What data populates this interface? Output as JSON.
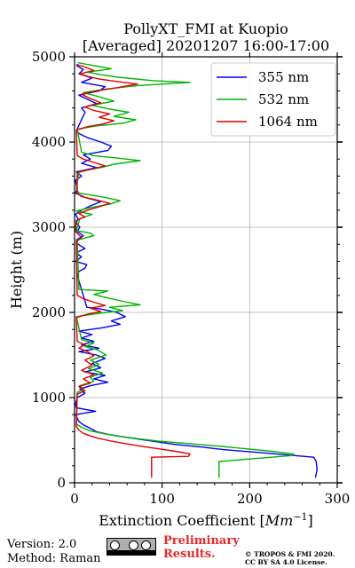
{
  "chart_data": {
    "type": "line",
    "title_line1": "PollyXT_FMI at Kuopio",
    "title_line2": "[Averaged] 20201207 16:00-17:00",
    "xlabel": "Extinction Coefficient [",
    "xlabel_unit_base": "Mm",
    "xlabel_unit_exp": "−1",
    "xlabel_close": "]",
    "ylabel": "Height (m)",
    "xlim": [
      0,
      300
    ],
    "ylim": [
      0,
      5000
    ],
    "xticks": [
      "0",
      "100",
      "200",
      "300"
    ],
    "yticks": [
      "0",
      "1000",
      "2000",
      "3000",
      "4000",
      "5000"
    ],
    "grid": true,
    "legend_position": "top-right",
    "series": [
      {
        "name": "355 nm",
        "color": "#0000ee",
        "points": [
          [
            275,
            60
          ],
          [
            277,
            150
          ],
          [
            276,
            250
          ],
          [
            273,
            300
          ],
          [
            240,
            330
          ],
          [
            205,
            360
          ],
          [
            170,
            390
          ],
          [
            145,
            420
          ],
          [
            115,
            450
          ],
          [
            95,
            480
          ],
          [
            75,
            510
          ],
          [
            55,
            540
          ],
          [
            38,
            570
          ],
          [
            25,
            600
          ],
          [
            18,
            640
          ],
          [
            10,
            680
          ],
          [
            5,
            720
          ],
          [
            3,
            760
          ],
          [
            1,
            800
          ],
          [
            24,
            840
          ],
          [
            2,
            880
          ],
          [
            1,
            920
          ],
          [
            3,
            1000
          ],
          [
            12,
            1050
          ],
          [
            6,
            1100
          ],
          [
            18,
            1140
          ],
          [
            38,
            1180
          ],
          [
            22,
            1220
          ],
          [
            35,
            1260
          ],
          [
            12,
            1300
          ],
          [
            30,
            1350
          ],
          [
            20,
            1400
          ],
          [
            35,
            1460
          ],
          [
            25,
            1500
          ],
          [
            5,
            1540
          ],
          [
            28,
            1580
          ],
          [
            8,
            1620
          ],
          [
            22,
            1660
          ],
          [
            8,
            1700
          ],
          [
            20,
            1740
          ],
          [
            5,
            1780
          ],
          [
            32,
            1820
          ],
          [
            52,
            1860
          ],
          [
            42,
            1900
          ],
          [
            58,
            1950
          ],
          [
            48,
            2000
          ],
          [
            30,
            2040
          ],
          [
            14,
            2060
          ],
          [
            3,
            2440
          ],
          [
            5,
            2480
          ],
          [
            12,
            2520
          ],
          [
            14,
            2560
          ],
          [
            1,
            2600
          ],
          [
            8,
            2650
          ],
          [
            2,
            2700
          ],
          [
            12,
            2750
          ],
          [
            4,
            2800
          ],
          [
            2,
            2850
          ],
          [
            10,
            2900
          ],
          [
            3,
            2950
          ],
          [
            6,
            3000
          ],
          [
            2,
            3050
          ],
          [
            4,
            3100
          ],
          [
            1,
            3150
          ],
          [
            8,
            3200
          ],
          [
            18,
            3250
          ],
          [
            30,
            3300
          ],
          [
            12,
            3350
          ],
          [
            1,
            3400
          ],
          [
            3,
            3450
          ],
          [
            1,
            3550
          ],
          [
            8,
            3600
          ],
          [
            2,
            3650
          ],
          [
            25,
            3700
          ],
          [
            8,
            3750
          ],
          [
            18,
            3800
          ],
          [
            10,
            3850
          ],
          [
            38,
            3900
          ],
          [
            42,
            3950
          ],
          [
            30,
            4000
          ],
          [
            15,
            4050
          ],
          [
            5,
            4100
          ],
          [
            2,
            4130
          ],
          [
            12,
            4350
          ],
          [
            8,
            4400
          ],
          [
            25,
            4450
          ],
          [
            15,
            4500
          ],
          [
            5,
            4550
          ],
          [
            28,
            4600
          ],
          [
            35,
            4650
          ],
          [
            8,
            4700
          ],
          [
            20,
            4750
          ],
          [
            5,
            4800
          ],
          [
            10,
            4850
          ],
          [
            2,
            4900
          ]
        ]
      },
      {
        "name": "532 nm",
        "color": "#00b400",
        "points": [
          [
            165,
            60
          ],
          [
            165,
            250
          ],
          [
            248,
            320
          ],
          [
            250,
            340
          ],
          [
            225,
            370
          ],
          [
            195,
            400
          ],
          [
            165,
            430
          ],
          [
            130,
            460
          ],
          [
            95,
            490
          ],
          [
            70,
            520
          ],
          [
            48,
            550
          ],
          [
            32,
            580
          ],
          [
            18,
            610
          ],
          [
            8,
            650
          ],
          [
            2,
            690
          ],
          [
            3,
            1060
          ],
          [
            10,
            1100
          ],
          [
            6,
            1140
          ],
          [
            22,
            1190
          ],
          [
            18,
            1240
          ],
          [
            32,
            1290
          ],
          [
            16,
            1340
          ],
          [
            28,
            1390
          ],
          [
            18,
            1440
          ],
          [
            36,
            1500
          ],
          [
            26,
            1560
          ],
          [
            12,
            1600
          ],
          [
            22,
            1640
          ],
          [
            8,
            1680
          ],
          [
            2,
            1950
          ],
          [
            28,
            1990
          ],
          [
            55,
            2020
          ],
          [
            40,
            2060
          ],
          [
            75,
            2090
          ],
          [
            55,
            2130
          ],
          [
            38,
            2170
          ],
          [
            22,
            2210
          ],
          [
            38,
            2250
          ],
          [
            5,
            2270
          ],
          [
            3,
            2850
          ],
          [
            22,
            2900
          ],
          [
            18,
            2930
          ],
          [
            2,
            2960
          ],
          [
            6,
            3100
          ],
          [
            20,
            3150
          ],
          [
            2,
            3190
          ],
          [
            18,
            3230
          ],
          [
            40,
            3270
          ],
          [
            52,
            3310
          ],
          [
            35,
            3350
          ],
          [
            5,
            3400
          ],
          [
            2,
            3450
          ],
          [
            5,
            3650
          ],
          [
            30,
            3700
          ],
          [
            45,
            3740
          ],
          [
            75,
            3780
          ],
          [
            50,
            3810
          ],
          [
            22,
            3840
          ],
          [
            8,
            3880
          ],
          [
            3,
            4150
          ],
          [
            25,
            4190
          ],
          [
            55,
            4220
          ],
          [
            70,
            4260
          ],
          [
            45,
            4300
          ],
          [
            62,
            4350
          ],
          [
            38,
            4390
          ],
          [
            20,
            4430
          ],
          [
            45,
            4480
          ],
          [
            28,
            4530
          ],
          [
            10,
            4580
          ],
          [
            35,
            4620
          ],
          [
            70,
            4660
          ],
          [
            132,
            4700
          ],
          [
            90,
            4720
          ],
          [
            50,
            4760
          ],
          [
            30,
            4790
          ],
          [
            15,
            4820
          ],
          [
            42,
            4860
          ],
          [
            20,
            4900
          ],
          [
            4,
            4930
          ]
        ]
      },
      {
        "name": "1064 nm",
        "color": "#dd0000",
        "points": [
          [
            88,
            60
          ],
          [
            88,
            300
          ],
          [
            130,
            310
          ],
          [
            132,
            340
          ],
          [
            115,
            370
          ],
          [
            95,
            400
          ],
          [
            75,
            430
          ],
          [
            58,
            460
          ],
          [
            42,
            490
          ],
          [
            28,
            520
          ],
          [
            18,
            550
          ],
          [
            10,
            580
          ],
          [
            5,
            620
          ],
          [
            2,
            660
          ],
          [
            3,
            1040
          ],
          [
            12,
            1080
          ],
          [
            5,
            1130
          ],
          [
            18,
            1170
          ],
          [
            10,
            1220
          ],
          [
            22,
            1270
          ],
          [
            8,
            1320
          ],
          [
            20,
            1380
          ],
          [
            12,
            1440
          ],
          [
            22,
            1490
          ],
          [
            15,
            1540
          ],
          [
            5,
            1580
          ],
          [
            12,
            1620
          ],
          [
            3,
            1660
          ],
          [
            2,
            1940
          ],
          [
            15,
            1980
          ],
          [
            30,
            2010
          ],
          [
            18,
            2050
          ],
          [
            35,
            2080
          ],
          [
            22,
            2120
          ],
          [
            10,
            2160
          ],
          [
            3,
            2200
          ],
          [
            2,
            2830
          ],
          [
            8,
            2880
          ],
          [
            4,
            2920
          ],
          [
            1,
            2950
          ],
          [
            2,
            3080
          ],
          [
            12,
            3120
          ],
          [
            5,
            3160
          ],
          [
            15,
            3200
          ],
          [
            28,
            3240
          ],
          [
            40,
            3280
          ],
          [
            25,
            3320
          ],
          [
            8,
            3360
          ],
          [
            3,
            3400
          ],
          [
            3,
            3640
          ],
          [
            18,
            3680
          ],
          [
            35,
            3720
          ],
          [
            22,
            3760
          ],
          [
            10,
            3800
          ],
          [
            3,
            3840
          ],
          [
            2,
            4140
          ],
          [
            15,
            4180
          ],
          [
            32,
            4210
          ],
          [
            45,
            4250
          ],
          [
            28,
            4290
          ],
          [
            40,
            4330
          ],
          [
            22,
            4370
          ],
          [
            12,
            4410
          ],
          [
            30,
            4460
          ],
          [
            18,
            4510
          ],
          [
            8,
            4560
          ],
          [
            25,
            4600
          ],
          [
            50,
            4640
          ],
          [
            72,
            4680
          ],
          [
            48,
            4710
          ],
          [
            28,
            4740
          ],
          [
            15,
            4770
          ],
          [
            6,
            4800
          ],
          [
            22,
            4840
          ],
          [
            12,
            4880
          ],
          [
            2,
            4910
          ]
        ]
      }
    ]
  },
  "footer": {
    "version": "Version: 2.0",
    "method": "Method: Raman",
    "preliminary_line1": "Preliminary",
    "preliminary_line2": "Results.",
    "copyright_line1": "© TROPOS & FMI 2020.",
    "copyright_line2": "CC BY SA 4.0 License.",
    "license_icon": "cc-by-sa-badge-icon"
  }
}
